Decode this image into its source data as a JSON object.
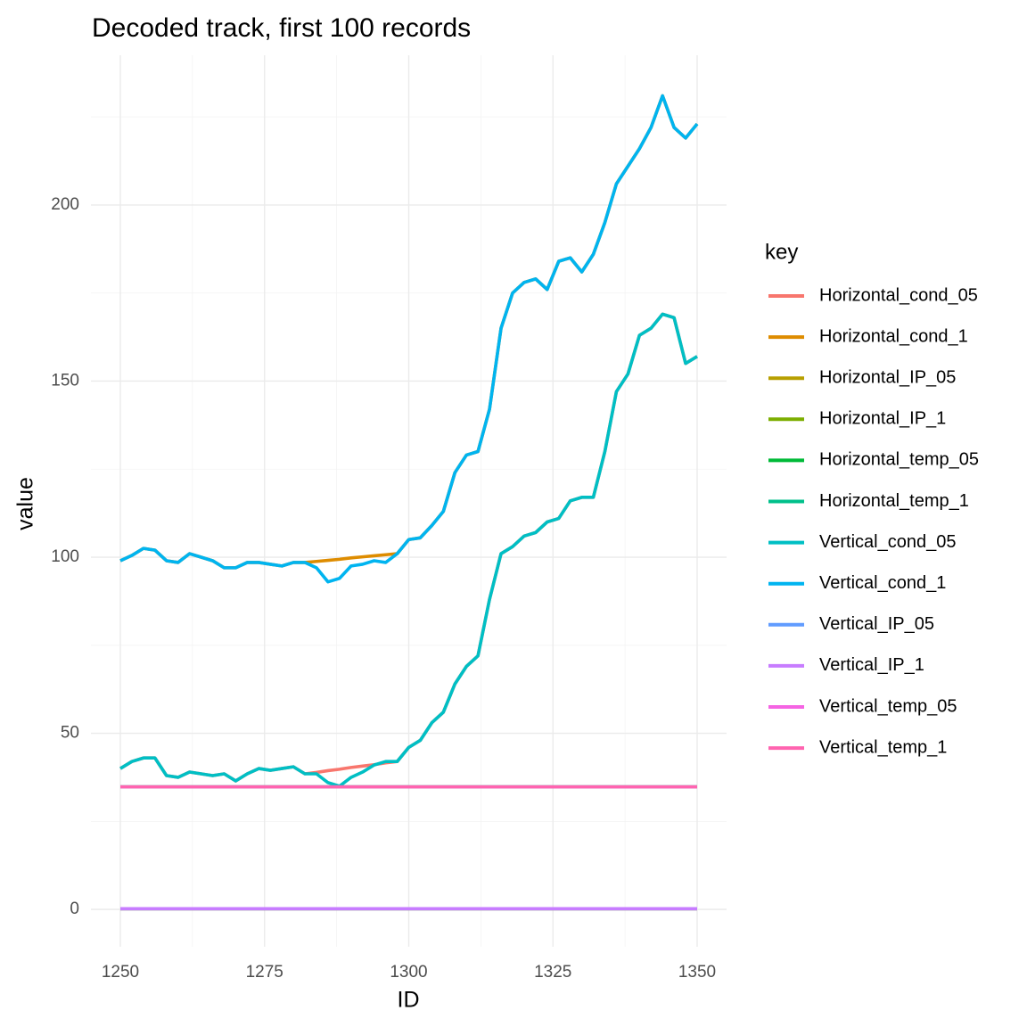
{
  "chart_data": {
    "type": "line",
    "title": "Decoded track, first 100 records",
    "x_label": "ID",
    "y_label": "value",
    "legend_title": "key",
    "legend_position": "right",
    "grid": true,
    "xlim": [
      1244.9,
      1355.1
    ],
    "ylim": [
      -10.6,
      242.5
    ],
    "xticks": [
      1250,
      1275,
      1300,
      1325,
      1350
    ],
    "yticks": [
      0,
      50,
      100,
      150,
      200
    ],
    "x": [
      1250,
      1252,
      1254,
      1256,
      1258,
      1260,
      1262,
      1264,
      1266,
      1268,
      1270,
      1272,
      1274,
      1276,
      1278,
      1280,
      1282,
      1284,
      1286,
      1288,
      1290,
      1292,
      1294,
      1296,
      1298,
      1300,
      1302,
      1304,
      1306,
      1308,
      1310,
      1312,
      1314,
      1316,
      1318,
      1320,
      1322,
      1324,
      1326,
      1328,
      1330,
      1332,
      1334,
      1336,
      1338,
      1340,
      1342,
      1344,
      1346,
      1348,
      1350
    ],
    "series": [
      {
        "name": "Horizontal_cond_05",
        "color": "#F8766D",
        "values": [
          40,
          42,
          43,
          43,
          38,
          37.5,
          39,
          38.5,
          38,
          38.5,
          36.5,
          38.5,
          40,
          39.5,
          40,
          40.5,
          38.5,
          38.9,
          39.4,
          39.8,
          40.3,
          40.7,
          41.1,
          41.6,
          42,
          46,
          48,
          53,
          56,
          64,
          69,
          72,
          88,
          101,
          103,
          106,
          107,
          110,
          111,
          116,
          117,
          117,
          130,
          147,
          152,
          163,
          165,
          169,
          168,
          155,
          157
        ]
      },
      {
        "name": "Horizontal_cond_1",
        "color": "#DE8C00",
        "values": [
          99,
          100.5,
          102.5,
          102,
          99,
          98.5,
          101,
          100,
          99,
          97,
          97,
          98.5,
          98.5,
          98,
          97.5,
          98.5,
          98.5,
          98.8,
          99.1,
          99.4,
          99.8,
          100.1,
          100.4,
          100.7,
          101,
          105,
          105.5,
          109,
          113,
          124,
          129,
          130,
          142,
          165,
          175,
          178,
          179,
          176,
          184,
          185,
          181,
          186,
          195,
          206,
          211,
          216,
          222,
          231,
          222,
          219,
          223
        ]
      },
      {
        "name": "Horizontal_IP_05",
        "color": "#B79F00",
        "values": [
          0.2,
          0.2,
          0.2,
          0.2,
          0.2,
          0.2,
          0.2,
          0.2,
          0.2,
          0.2,
          0.2,
          0.2,
          0.2,
          0.2,
          0.2,
          0.2,
          0.2,
          0.2,
          0.2,
          0.2,
          0.2,
          0.2,
          0.2,
          0.2,
          0.2,
          0.2,
          0.2,
          0.2,
          0.2,
          0.2,
          0.2,
          0.2,
          0.2,
          0.2,
          0.2,
          0.2,
          0.2,
          0.2,
          0.2,
          0.2,
          0.2,
          0.2,
          0.2,
          0.2,
          0.2,
          0.2,
          0.2,
          0.2,
          0.2,
          0.2,
          0.2
        ]
      },
      {
        "name": "Horizontal_IP_1",
        "color": "#7CAE00",
        "values": [
          0.2,
          0.2,
          0.2,
          0.2,
          0.2,
          0.2,
          0.2,
          0.2,
          0.2,
          0.2,
          0.2,
          0.2,
          0.2,
          0.2,
          0.2,
          0.2,
          0.2,
          0.2,
          0.2,
          0.2,
          0.2,
          0.2,
          0.2,
          0.2,
          0.2,
          0.2,
          0.2,
          0.2,
          0.2,
          0.2,
          0.2,
          0.2,
          0.2,
          0.2,
          0.2,
          0.2,
          0.2,
          0.2,
          0.2,
          0.2,
          0.2,
          0.2,
          0.2,
          0.2,
          0.2,
          0.2,
          0.2,
          0.2,
          0.2,
          0.2,
          0.2
        ]
      },
      {
        "name": "Horizontal_temp_05",
        "color": "#00BA38",
        "values": [
          34.8,
          34.8,
          34.8,
          34.8,
          34.8,
          34.8,
          34.8,
          34.8,
          34.8,
          34.8,
          34.8,
          34.8,
          34.8,
          34.8,
          34.8,
          34.8,
          34.8,
          34.8,
          34.8,
          34.8,
          34.8,
          34.8,
          34.8,
          34.8,
          34.8,
          34.8,
          34.8,
          34.8,
          34.8,
          34.8,
          34.8,
          34.8,
          34.8,
          34.8,
          34.8,
          34.8,
          34.8,
          34.8,
          34.8,
          34.8,
          34.8,
          34.8,
          34.8,
          34.8,
          34.8,
          34.8,
          34.8,
          34.8,
          34.8,
          34.8,
          34.8
        ]
      },
      {
        "name": "Horizontal_temp_1",
        "color": "#00C08B",
        "values": [
          34.8,
          34.8,
          34.8,
          34.8,
          34.8,
          34.8,
          34.8,
          34.8,
          34.8,
          34.8,
          34.8,
          34.8,
          34.8,
          34.8,
          34.8,
          34.8,
          34.8,
          34.8,
          34.8,
          34.8,
          34.8,
          34.8,
          34.8,
          34.8,
          34.8,
          34.8,
          34.8,
          34.8,
          34.8,
          34.8,
          34.8,
          34.8,
          34.8,
          34.8,
          34.8,
          34.8,
          34.8,
          34.8,
          34.8,
          34.8,
          34.8,
          34.8,
          34.8,
          34.8,
          34.8,
          34.8,
          34.8,
          34.8,
          34.8,
          34.8,
          34.8
        ]
      },
      {
        "name": "Vertical_cond_05",
        "color": "#00BFC4",
        "values": [
          40,
          42,
          43,
          43,
          38,
          37.5,
          39,
          38.5,
          38,
          38.5,
          36.5,
          38.5,
          40,
          39.5,
          40,
          40.5,
          38.5,
          38.5,
          36,
          35,
          37.5,
          39,
          41,
          42,
          42,
          46,
          48,
          53,
          56,
          64,
          69,
          72,
          88,
          101,
          103,
          106,
          107,
          110,
          111,
          116,
          117,
          117,
          130,
          147,
          152,
          163,
          165,
          169,
          168,
          155,
          157
        ]
      },
      {
        "name": "Vertical_cond_1",
        "color": "#00B4F0",
        "values": [
          99,
          100.5,
          102.5,
          102,
          99,
          98.5,
          101,
          100,
          99,
          97,
          97,
          98.5,
          98.5,
          98,
          97.5,
          98.5,
          98.5,
          97,
          93,
          94,
          97.5,
          98,
          99,
          98.5,
          101,
          105,
          105.5,
          109,
          113,
          124,
          129,
          130,
          142,
          165,
          175,
          178,
          179,
          176,
          184,
          185,
          181,
          186,
          195,
          206,
          211,
          216,
          222,
          231,
          222,
          219,
          223
        ]
      },
      {
        "name": "Vertical_IP_05",
        "color": "#619CFF",
        "values": [
          0.2,
          0.2,
          0.2,
          0.2,
          0.2,
          0.2,
          0.2,
          0.2,
          0.2,
          0.2,
          0.2,
          0.2,
          0.2,
          0.2,
          0.2,
          0.2,
          0.2,
          0.2,
          0.2,
          0.2,
          0.2,
          0.2,
          0.2,
          0.2,
          0.2,
          0.2,
          0.2,
          0.2,
          0.2,
          0.2,
          0.2,
          0.2,
          0.2,
          0.2,
          0.2,
          0.2,
          0.2,
          0.2,
          0.2,
          0.2,
          0.2,
          0.2,
          0.2,
          0.2,
          0.2,
          0.2,
          0.2,
          0.2,
          0.2,
          0.2,
          0.2
        ]
      },
      {
        "name": "Vertical_IP_1",
        "color": "#C77CFF",
        "values": [
          0.2,
          0.2,
          0.2,
          0.2,
          0.2,
          0.2,
          0.2,
          0.2,
          0.2,
          0.2,
          0.2,
          0.2,
          0.2,
          0.2,
          0.2,
          0.2,
          0.2,
          0.2,
          0.2,
          0.2,
          0.2,
          0.2,
          0.2,
          0.2,
          0.2,
          0.2,
          0.2,
          0.2,
          0.2,
          0.2,
          0.2,
          0.2,
          0.2,
          0.2,
          0.2,
          0.2,
          0.2,
          0.2,
          0.2,
          0.2,
          0.2,
          0.2,
          0.2,
          0.2,
          0.2,
          0.2,
          0.2,
          0.2,
          0.2,
          0.2,
          0.2
        ]
      },
      {
        "name": "Vertical_temp_05",
        "color": "#F564E3",
        "values": [
          34.8,
          34.8,
          34.8,
          34.8,
          34.8,
          34.8,
          34.8,
          34.8,
          34.8,
          34.8,
          34.8,
          34.8,
          34.8,
          34.8,
          34.8,
          34.8,
          34.8,
          34.8,
          34.8,
          34.8,
          34.8,
          34.8,
          34.8,
          34.8,
          34.8,
          34.8,
          34.8,
          34.8,
          34.8,
          34.8,
          34.8,
          34.8,
          34.8,
          34.8,
          34.8,
          34.8,
          34.8,
          34.8,
          34.8,
          34.8,
          34.8,
          34.8,
          34.8,
          34.8,
          34.8,
          34.8,
          34.8,
          34.8,
          34.8,
          34.8,
          34.8
        ]
      },
      {
        "name": "Vertical_temp_1",
        "color": "#FF64B0",
        "values": [
          34.8,
          34.8,
          34.8,
          34.8,
          34.8,
          34.8,
          34.8,
          34.8,
          34.8,
          34.8,
          34.8,
          34.8,
          34.8,
          34.8,
          34.8,
          34.8,
          34.8,
          34.8,
          34.8,
          34.8,
          34.8,
          34.8,
          34.8,
          34.8,
          34.8,
          34.8,
          34.8,
          34.8,
          34.8,
          34.8,
          34.8,
          34.8,
          34.8,
          34.8,
          34.8,
          34.8,
          34.8,
          34.8,
          34.8,
          34.8,
          34.8,
          34.8,
          34.8,
          34.8,
          34.8,
          34.8,
          34.8,
          34.8,
          34.8,
          34.8,
          34.8
        ]
      }
    ]
  }
}
